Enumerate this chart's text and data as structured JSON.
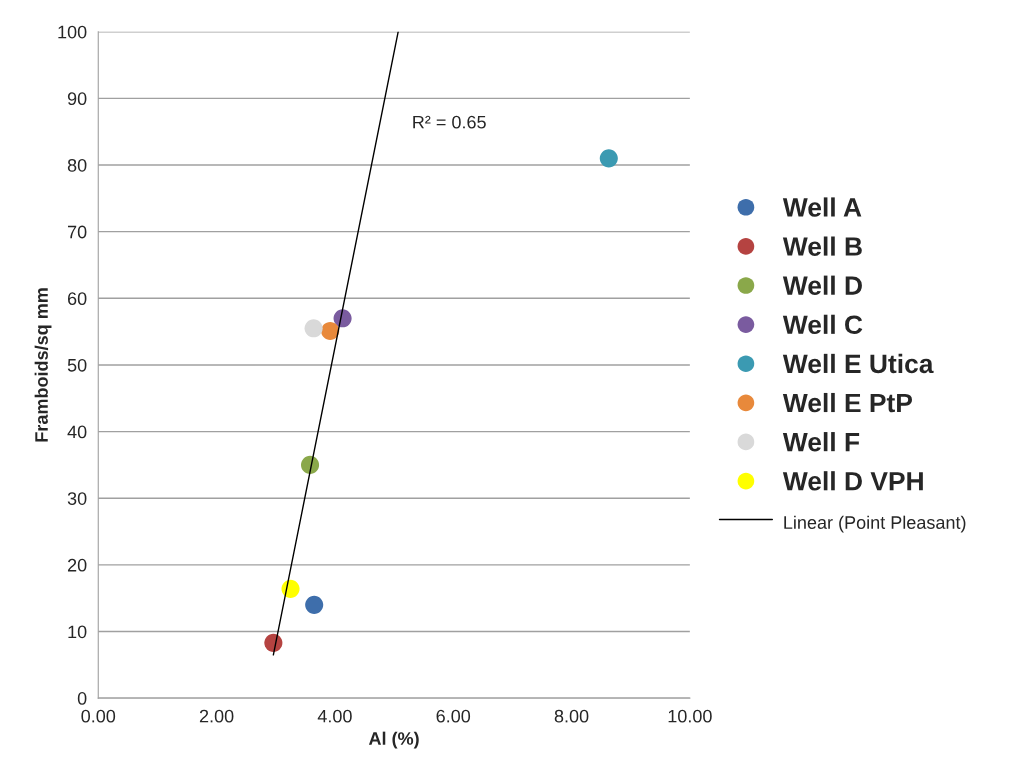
{
  "chart_data": {
    "type": "scatter",
    "xlabel": "Al (%)",
    "ylabel": "Framboids/sq mm",
    "xlim": [
      0,
      10
    ],
    "xticks": [
      {
        "value": 0,
        "label": "0.00"
      },
      {
        "value": 2,
        "label": "2.00"
      },
      {
        "value": 4,
        "label": "4.00"
      },
      {
        "value": 6,
        "label": "6.00"
      },
      {
        "value": 8,
        "label": "8.00"
      },
      {
        "value": 10,
        "label": "10.00"
      }
    ],
    "ylim": [
      0,
      100
    ],
    "yticks": [
      0,
      10,
      20,
      30,
      40,
      50,
      60,
      70,
      80,
      90,
      100
    ],
    "grid": "y",
    "legend": "right",
    "marker": "circle",
    "annotations": [
      "R² = 0.65"
    ],
    "series": [
      {
        "name": "Well A",
        "color": "#3e6eab",
        "x": [
          3.65
        ],
        "values": [
          14.0
        ]
      },
      {
        "name": "Well B",
        "color": "#b54341",
        "x": [
          2.96
        ],
        "values": [
          8.3
        ]
      },
      {
        "name": "Well D",
        "color": "#8aa84a",
        "x": [
          3.58
        ],
        "values": [
          35.0
        ]
      },
      {
        "name": "Well C",
        "color": "#7a5b9f",
        "x": [
          4.13
        ],
        "values": [
          57.0
        ]
      },
      {
        "name": "Well E Utica",
        "color": "#3b9ab2",
        "x": [
          8.63
        ],
        "values": [
          81.0
        ]
      },
      {
        "name": "Well E PtP",
        "color": "#e8893b",
        "x": [
          3.92
        ],
        "values": [
          55.1
        ]
      },
      {
        "name": "Well F",
        "color": "#d9d9d9",
        "x": [
          3.64
        ],
        "values": [
          55.5
        ]
      },
      {
        "name": "Well D VPH",
        "color": "#ffff00",
        "x": [
          3.25
        ],
        "values": [
          16.4
        ]
      },
      {
        "name": "Linear (Point Pleasant)",
        "type": "line",
        "color": "#000000",
        "marker": "none",
        "x": [
          2.96,
          5.07
        ],
        "values": [
          6.5,
          100
        ]
      }
    ]
  }
}
